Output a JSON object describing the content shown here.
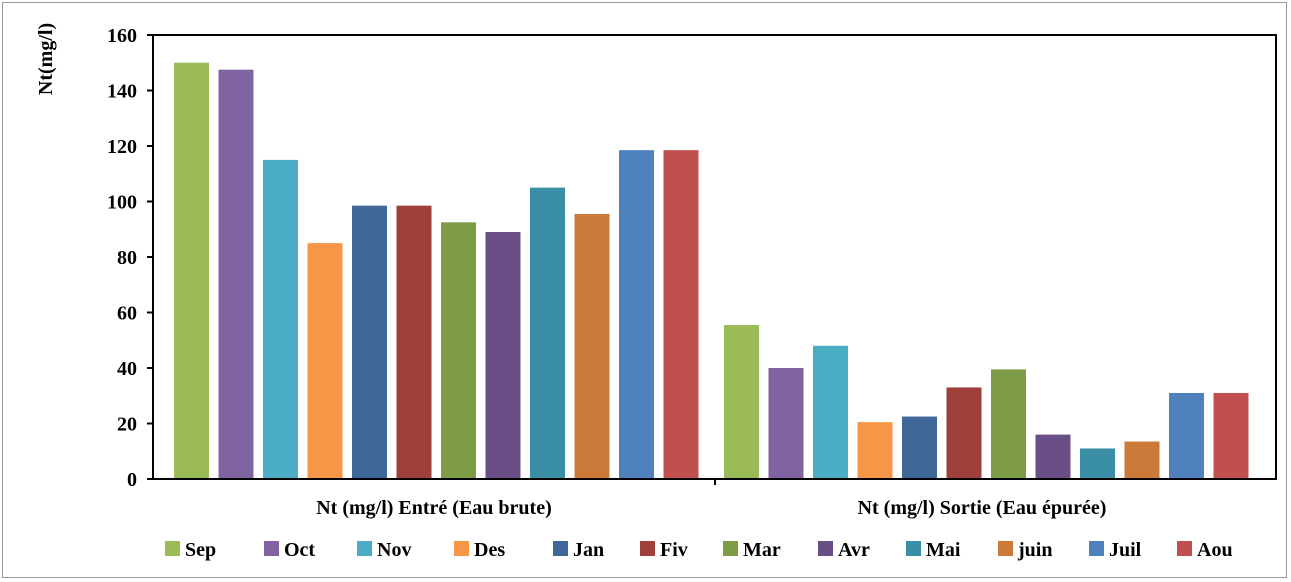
{
  "chart_data": {
    "type": "bar",
    "categories": [
      "Nt (mg/l) Entré (Eau brute)",
      "Nt (mg/l) Sortie (Eau épurée)"
    ],
    "series": [
      {
        "name": "Sep",
        "values": [
          150,
          55.5
        ],
        "color": "#9BBB59"
      },
      {
        "name": "Oct",
        "values": [
          147.5,
          40
        ],
        "color": "#8064A2"
      },
      {
        "name": "Nov",
        "values": [
          115,
          48
        ],
        "color": "#4BACC6"
      },
      {
        "name": "Des",
        "values": [
          85,
          20.5
        ],
        "color": "#F79646"
      },
      {
        "name": "Jan",
        "values": [
          98.5,
          22.5
        ],
        "color": "#3F6797"
      },
      {
        "name": "Fiv",
        "values": [
          98.5,
          33
        ],
        "color": "#9F3F3C"
      },
      {
        "name": "Mar",
        "values": [
          92.5,
          39.5
        ],
        "color": "#7E9B48"
      },
      {
        "name": "Avr",
        "values": [
          89,
          16
        ],
        "color": "#6A4F86"
      },
      {
        "name": "Mai",
        "values": [
          105,
          11
        ],
        "color": "#3A8FA6"
      },
      {
        "name": "juin",
        "values": [
          95.5,
          13.5
        ],
        "color": "#CB7A39"
      },
      {
        "name": "Juil",
        "values": [
          118.5,
          31
        ],
        "color": "#4F81BD"
      },
      {
        "name": "Aou",
        "values": [
          118.5,
          31
        ],
        "color": "#C0504D"
      }
    ],
    "ylabel": "Nt(mg/l)",
    "ylim": [
      0,
      160
    ],
    "yticks": [
      0,
      20,
      40,
      60,
      80,
      100,
      120,
      140,
      160
    ],
    "grid": false,
    "legend_position": "bottom"
  }
}
